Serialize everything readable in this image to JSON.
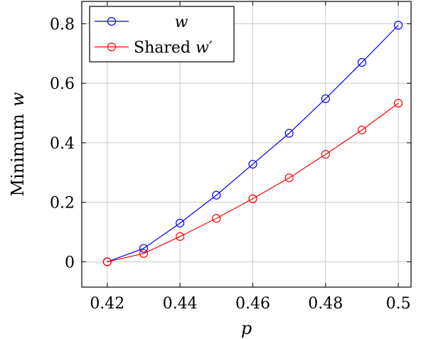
{
  "chart_data": {
    "type": "line",
    "title": "",
    "xlabel": "p",
    "ylabel_prefix": "Minimum",
    "ylabel_var": "w",
    "x": [
      0.42,
      0.43,
      0.44,
      0.45,
      0.46,
      0.47,
      0.48,
      0.49,
      0.5
    ],
    "xlim": [
      0.413,
      0.5035
    ],
    "ylim": [
      -0.085,
      0.875
    ],
    "xticks": [
      0.42,
      0.44,
      0.46,
      0.48,
      0.5
    ],
    "xtick_labels": [
      "0.42",
      "0.44",
      "0.46",
      "0.48",
      "0.5"
    ],
    "yticks": [
      0,
      0.2,
      0.4,
      0.6,
      0.8
    ],
    "ytick_labels": [
      "0",
      "0.2",
      "0.4",
      "0.6",
      "0.8"
    ],
    "grid": true,
    "legend_position": "top-left",
    "series": [
      {
        "name": "w",
        "legend_plain": "",
        "legend_italic": "w",
        "color": "#0000ff",
        "marker": "circle",
        "values": [
          0.0,
          0.045,
          0.13,
          0.224,
          0.328,
          0.432,
          0.548,
          0.67,
          0.795
        ]
      },
      {
        "name": "Shared w′",
        "legend_plain": "Shared ",
        "legend_italic": "w′",
        "color": "#ff0000",
        "marker": "circle",
        "values": [
          0.0,
          0.028,
          0.085,
          0.146,
          0.212,
          0.282,
          0.361,
          0.443,
          0.533
        ]
      }
    ]
  }
}
